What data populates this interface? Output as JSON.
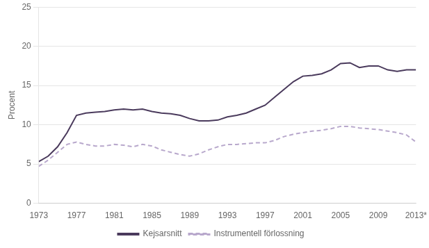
{
  "chart_data": {
    "type": "line",
    "ylabel": "Procent",
    "x": [
      1973,
      1974,
      1975,
      1976,
      1977,
      1978,
      1979,
      1980,
      1981,
      1982,
      1983,
      1984,
      1985,
      1986,
      1987,
      1988,
      1989,
      1990,
      1991,
      1992,
      1993,
      1994,
      1995,
      1996,
      1997,
      1998,
      1999,
      2000,
      2001,
      2002,
      2003,
      2004,
      2005,
      2006,
      2007,
      2008,
      2009,
      2010,
      2011,
      2012,
      2013
    ],
    "series": [
      {
        "name": "Kejsarsnitt",
        "color": "#4a3a5c",
        "line_style": "solid",
        "values": [
          5.3,
          6.0,
          7.2,
          9.0,
          11.2,
          11.5,
          11.6,
          11.7,
          11.9,
          12.0,
          11.9,
          12.0,
          11.7,
          11.5,
          11.4,
          11.2,
          10.8,
          10.5,
          10.5,
          10.6,
          11.0,
          11.2,
          11.5,
          12.0,
          12.5,
          13.5,
          14.5,
          15.5,
          16.2,
          16.3,
          16.5,
          17.0,
          17.8,
          17.9,
          17.3,
          17.5,
          17.5,
          17.0,
          16.8,
          17.0,
          17.0
        ]
      },
      {
        "name": "Instrumentell förlossning",
        "color": "#b8a8cc",
        "line_style": "dashed",
        "values": [
          4.7,
          5.5,
          6.5,
          7.5,
          7.8,
          7.5,
          7.3,
          7.3,
          7.5,
          7.4,
          7.2,
          7.5,
          7.3,
          6.8,
          6.5,
          6.2,
          6.0,
          6.3,
          6.8,
          7.2,
          7.5,
          7.5,
          7.6,
          7.7,
          7.7,
          8.0,
          8.5,
          8.8,
          9.0,
          9.2,
          9.3,
          9.5,
          9.8,
          9.8,
          9.6,
          9.5,
          9.4,
          9.2,
          9.0,
          8.7,
          7.8
        ]
      }
    ],
    "xlim": [
      1973,
      2013
    ],
    "xticks": [
      1973,
      1977,
      1981,
      1985,
      1989,
      1993,
      1997,
      2001,
      2005,
      2009,
      {
        "value": 2013,
        "label": "2013*"
      }
    ],
    "ylim": [
      0,
      25
    ],
    "yticks": [
      0,
      5,
      10,
      15,
      20,
      25
    ],
    "grid": "y",
    "legend": "bottom"
  }
}
